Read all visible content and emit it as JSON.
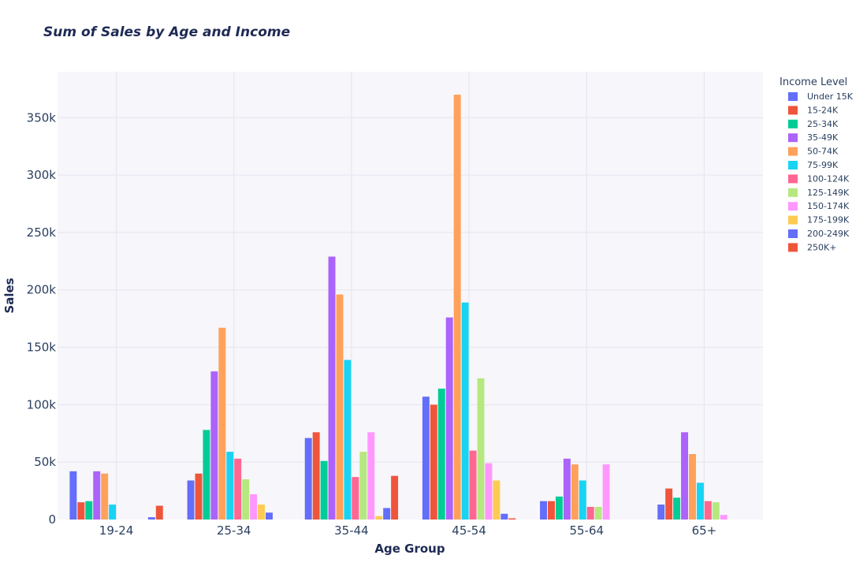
{
  "chart_data": {
    "type": "bar",
    "title": "Sum of Sales by Age and Income",
    "xlabel": "Age Group",
    "ylabel": "Sales",
    "ylim": [
      0,
      390000
    ],
    "y_ticks": [
      0,
      50000,
      100000,
      150000,
      200000,
      250000,
      300000,
      350000
    ],
    "y_tick_labels": [
      "0",
      "50k",
      "100k",
      "150k",
      "200k",
      "250k",
      "300k",
      "350k"
    ],
    "categories": [
      "19-24",
      "25-34",
      "35-44",
      "45-54",
      "55-64",
      "65+"
    ],
    "legend_title": "Income Level",
    "legend_position": "top-right",
    "grid": true,
    "series": [
      {
        "name": "Under 15K",
        "color": "#636efa",
        "values": [
          42000,
          34000,
          71000,
          107000,
          16000,
          13000
        ]
      },
      {
        "name": "15-24K",
        "color": "#ef553b",
        "values": [
          15000,
          40000,
          76000,
          100000,
          16000,
          27000
        ]
      },
      {
        "name": "25-34K",
        "color": "#00cc96",
        "values": [
          16000,
          78000,
          51000,
          114000,
          20000,
          19000
        ]
      },
      {
        "name": "35-49K",
        "color": "#ab63fa",
        "values": [
          42000,
          129000,
          229000,
          176000,
          53000,
          76000
        ]
      },
      {
        "name": "50-74K",
        "color": "#ffa15a",
        "values": [
          40000,
          167000,
          196000,
          370000,
          48000,
          57000
        ]
      },
      {
        "name": "75-99K",
        "color": "#19d3f3",
        "values": [
          13000,
          59000,
          139000,
          189000,
          34000,
          32000
        ]
      },
      {
        "name": "100-124K",
        "color": "#ff6692",
        "values": [
          0,
          53000,
          37000,
          60000,
          11000,
          16000
        ]
      },
      {
        "name": "125-149K",
        "color": "#b6e880",
        "values": [
          0,
          35000,
          59000,
          123000,
          11000,
          15000
        ]
      },
      {
        "name": "150-174K",
        "color": "#ff97ff",
        "values": [
          0,
          22000,
          76000,
          49000,
          48000,
          4000
        ]
      },
      {
        "name": "175-199K",
        "color": "#fecb52",
        "values": [
          0,
          13000,
          3000,
          34000,
          0,
          0
        ]
      },
      {
        "name": "200-249K",
        "color": "#636efa",
        "values": [
          2000,
          6000,
          10000,
          5000,
          0,
          0
        ]
      },
      {
        "name": "250K+",
        "color": "#ef553b",
        "values": [
          12000,
          0,
          38000,
          1000,
          0,
          0
        ]
      }
    ]
  }
}
